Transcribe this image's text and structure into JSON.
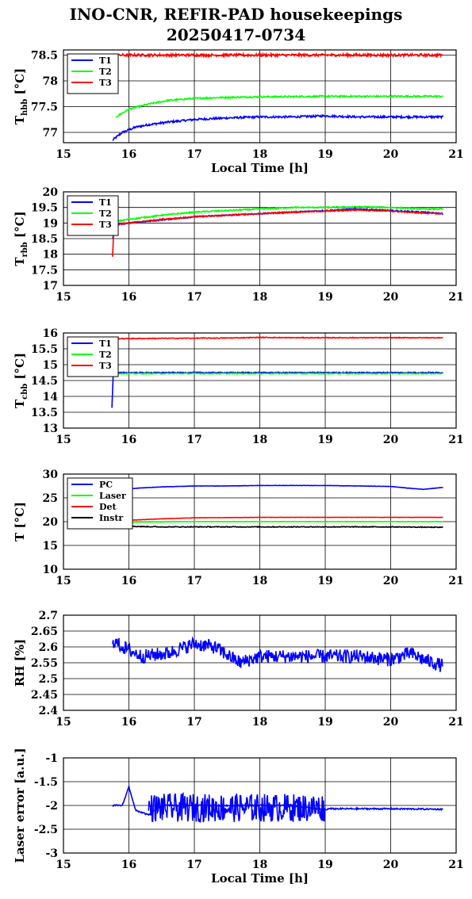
{
  "title_line1": "INO-CNR, REFIR-PAD housekeepings",
  "title_line2": "20250417-0734",
  "chart_data": [
    {
      "type": "line",
      "ylabel": "T_hbb [°C]",
      "ylabel_main": "T",
      "ylabel_sub": "hbb",
      "ylabel_tail": " [°C]",
      "xlabel": "Local Time [h]",
      "xlim": [
        15,
        21
      ],
      "ylim": [
        76.8,
        78.6
      ],
      "yticks": [
        77,
        77.5,
        78,
        78.5
      ],
      "ytick_labels": [
        "77",
        "77.5",
        "78",
        "78.5"
      ],
      "xticks": [
        15,
        16,
        17,
        18,
        19,
        20,
        21
      ],
      "xtick_labels": [
        "15",
        "16",
        "17",
        "18",
        "19",
        "20",
        "21"
      ],
      "legend": "top-left",
      "grid": true,
      "series": [
        {
          "name": "T1",
          "color": "#0000ff",
          "noise": 0.02,
          "x": [
            15.75,
            15.9,
            16.1,
            16.3,
            16.6,
            17.0,
            17.5,
            18.0,
            18.5,
            19.0,
            19.5,
            20.0,
            20.5,
            20.8
          ],
          "y": [
            76.85,
            77.0,
            77.1,
            77.15,
            77.2,
            77.25,
            77.28,
            77.3,
            77.3,
            77.32,
            77.3,
            77.3,
            77.3,
            77.3
          ]
        },
        {
          "name": "T2",
          "color": "#00ff00",
          "noise": 0.015,
          "x": [
            15.8,
            16.0,
            16.3,
            16.6,
            17.0,
            17.5,
            18.0,
            19.0,
            20.0,
            20.8
          ],
          "y": [
            77.3,
            77.45,
            77.55,
            77.62,
            77.66,
            77.68,
            77.69,
            77.7,
            77.7,
            77.7
          ]
        },
        {
          "name": "T3",
          "color": "#ff0000",
          "noise": 0.025,
          "x": [
            15.85,
            16.5,
            17.5,
            18.5,
            19.5,
            20.3,
            20.8
          ],
          "y": [
            78.5,
            78.5,
            78.5,
            78.5,
            78.5,
            78.5,
            78.5
          ]
        }
      ]
    },
    {
      "type": "line",
      "ylabel": "T_rbb [°C]",
      "ylabel_main": "T",
      "ylabel_sub": "rbb",
      "ylabel_tail": " [°C]",
      "xlabel": "",
      "xlim": [
        15,
        21
      ],
      "ylim": [
        17,
        20
      ],
      "yticks": [
        17,
        17.5,
        18,
        18.5,
        19,
        19.5,
        20
      ],
      "ytick_labels": [
        "17",
        "17.5",
        "18",
        "18.5",
        "19",
        "19.5",
        "20"
      ],
      "xticks": [
        15,
        16,
        17,
        18,
        19,
        20,
        21
      ],
      "xtick_labels": [
        "15",
        "16",
        "17",
        "18",
        "19",
        "20",
        "21"
      ],
      "legend": "top-left",
      "grid": true,
      "series": [
        {
          "name": "T1",
          "color": "#0000ff",
          "noise": 0.02,
          "x": [
            15.75,
            15.8,
            16.0,
            16.5,
            17.0,
            17.5,
            18.0,
            18.5,
            19.0,
            19.5,
            20.0,
            20.5,
            20.8
          ],
          "y": [
            18.5,
            18.95,
            19.0,
            19.1,
            19.2,
            19.25,
            19.3,
            19.35,
            19.4,
            19.45,
            19.4,
            19.35,
            19.3
          ]
        },
        {
          "name": "T2",
          "color": "#00ff00",
          "noise": 0.02,
          "x": [
            15.8,
            16.0,
            16.5,
            17.0,
            17.5,
            18.0,
            18.5,
            19.0,
            19.5,
            20.0,
            20.5,
            20.8
          ],
          "y": [
            19.05,
            19.12,
            19.25,
            19.35,
            19.4,
            19.45,
            19.5,
            19.5,
            19.52,
            19.5,
            19.45,
            19.45
          ]
        },
        {
          "name": "T3",
          "color": "#ff0000",
          "noise": 0.02,
          "x": [
            15.75,
            15.77,
            15.8,
            16.0,
            16.5,
            17.0,
            17.5,
            18.0,
            18.5,
            19.0,
            19.5,
            20.0,
            20.5,
            20.8
          ],
          "y": [
            17.9,
            18.85,
            18.95,
            19.0,
            19.12,
            19.2,
            19.25,
            19.3,
            19.35,
            19.38,
            19.42,
            19.38,
            19.32,
            19.3
          ]
        }
      ]
    },
    {
      "type": "line",
      "ylabel": "T_cbb [°C]",
      "ylabel_main": "T",
      "ylabel_sub": "cbb",
      "ylabel_tail": " [°C]",
      "xlabel": "",
      "xlim": [
        15,
        21
      ],
      "ylim": [
        13,
        16
      ],
      "yticks": [
        13,
        13.5,
        14,
        14.5,
        15,
        15.5,
        16
      ],
      "ytick_labels": [
        "13",
        "13.5",
        "14",
        "14.5",
        "15",
        "15.5",
        "16"
      ],
      "xticks": [
        15,
        16,
        17,
        18,
        19,
        20,
        21
      ],
      "xtick_labels": [
        "15",
        "16",
        "17",
        "18",
        "19",
        "20",
        "21"
      ],
      "legend": "top-left",
      "grid": true,
      "series": [
        {
          "name": "T1",
          "color": "#0000ff",
          "noise": 0.015,
          "x": [
            15.74,
            15.76,
            15.8,
            16.5,
            17.5,
            18.5,
            19.5,
            20.5,
            20.8
          ],
          "y": [
            13.65,
            14.7,
            14.75,
            14.75,
            14.75,
            14.75,
            14.75,
            14.75,
            14.75
          ]
        },
        {
          "name": "T2",
          "color": "#00ff00",
          "noise": 0.015,
          "x": [
            15.8,
            16.5,
            17.5,
            18.5,
            19.5,
            20.5,
            20.8
          ],
          "y": [
            14.72,
            14.72,
            14.72,
            14.72,
            14.72,
            14.72,
            14.72
          ]
        },
        {
          "name": "T3",
          "color": "#ff0000",
          "noise": 0.012,
          "x": [
            15.8,
            16.5,
            17.5,
            18.0,
            18.5,
            19.5,
            20.5,
            20.8
          ],
          "y": [
            15.82,
            15.83,
            15.84,
            15.86,
            15.85,
            15.85,
            15.85,
            15.85
          ]
        }
      ]
    },
    {
      "type": "line",
      "ylabel": "T [°C]",
      "ylabel_main": "T",
      "ylabel_sub": "",
      "ylabel_tail": " [°C]",
      "xlabel": "",
      "xlim": [
        15,
        21
      ],
      "ylim": [
        10,
        30
      ],
      "yticks": [
        10,
        15,
        20,
        25,
        30
      ],
      "ytick_labels": [
        "10",
        "15",
        "20",
        "25",
        "30"
      ],
      "xticks": [
        15,
        16,
        17,
        18,
        19,
        20,
        21
      ],
      "xtick_labels": [
        "15",
        "16",
        "17",
        "18",
        "19",
        "20",
        "21"
      ],
      "legend": "top-left",
      "grid": true,
      "series": [
        {
          "name": "PC",
          "color": "#0000ff",
          "noise": 0.03,
          "x": [
            15.9,
            16.2,
            16.5,
            17.0,
            17.5,
            18.0,
            18.5,
            19.0,
            19.5,
            20.0,
            20.3,
            20.5,
            20.8
          ],
          "y": [
            26.8,
            27.1,
            27.3,
            27.5,
            27.5,
            27.6,
            27.6,
            27.6,
            27.5,
            27.4,
            27.0,
            26.8,
            27.2
          ]
        },
        {
          "name": "Laser",
          "color": "#00ff00",
          "noise": 0.03,
          "x": [
            16.0,
            16.5,
            17.0,
            18.0,
            19.0,
            20.0,
            20.8
          ],
          "y": [
            19.9,
            19.95,
            20.0,
            20.0,
            20.0,
            20.0,
            20.0
          ]
        },
        {
          "name": "Det",
          "color": "#ff0000",
          "noise": 0.02,
          "x": [
            16.0,
            16.5,
            17.0,
            18.0,
            19.0,
            20.0,
            20.8
          ],
          "y": [
            20.3,
            20.6,
            20.8,
            20.9,
            20.9,
            20.9,
            20.9
          ]
        },
        {
          "name": "Instr",
          "color": "#000000",
          "noise": 0.08,
          "x": [
            16.0,
            16.5,
            17.0,
            18.0,
            19.0,
            20.0,
            20.8
          ],
          "y": [
            19.0,
            18.9,
            18.9,
            18.9,
            18.9,
            18.9,
            18.8
          ]
        }
      ]
    },
    {
      "type": "line",
      "ylabel": "RH [%]",
      "ylabel_main": "RH [%]",
      "ylabel_sub": "",
      "ylabel_tail": "",
      "xlabel": "",
      "xlim": [
        15,
        21
      ],
      "ylim": [
        2.4,
        2.7
      ],
      "yticks": [
        2.4,
        2.45,
        2.5,
        2.55,
        2.6,
        2.65,
        2.7
      ],
      "ytick_labels": [
        "2.4",
        "2.45",
        "2.5",
        "2.55",
        "2.6",
        "2.65",
        "2.7"
      ],
      "xticks": [
        15,
        16,
        17,
        18,
        19,
        20,
        21
      ],
      "xtick_labels": [
        "15",
        "16",
        "17",
        "18",
        "19",
        "20",
        "21"
      ],
      "legend": "none",
      "grid": true,
      "series": [
        {
          "name": "",
          "color": "#0000ff",
          "noise": 0.022,
          "x": [
            15.75,
            15.9,
            16.2,
            16.6,
            17.0,
            17.3,
            17.7,
            18.0,
            18.5,
            19.0,
            19.5,
            20.0,
            20.3,
            20.5,
            20.8
          ],
          "y": [
            2.62,
            2.6,
            2.57,
            2.58,
            2.61,
            2.6,
            2.55,
            2.57,
            2.57,
            2.57,
            2.57,
            2.56,
            2.58,
            2.56,
            2.54
          ]
        }
      ]
    },
    {
      "type": "line",
      "ylabel": "Laser error [a.u.]",
      "ylabel_main": "Laser error [a.u.]",
      "ylabel_sub": "",
      "ylabel_tail": "",
      "xlabel": "Local Time [h]",
      "xlim": [
        15,
        21
      ],
      "ylim": [
        -3,
        -1
      ],
      "yticks": [
        -3,
        -2.5,
        -2,
        -1.5,
        -1
      ],
      "ytick_labels": [
        "-3",
        "-2.5",
        "-2",
        "-1.5",
        "-1"
      ],
      "xticks": [
        15,
        16,
        17,
        18,
        19,
        20,
        21
      ],
      "xtick_labels": [
        "15",
        "16",
        "17",
        "18",
        "19",
        "20",
        "21"
      ],
      "legend": "none",
      "grid": true,
      "series": [
        {
          "name": "",
          "color": "#0000ff",
          "noise": 0.015,
          "x": [
            15.75,
            15.9,
            16.0,
            16.1,
            16.3,
            16.5,
            17.0,
            17.5,
            18.0,
            18.5,
            19.0,
            19.05,
            19.5,
            20.0,
            20.8
          ],
          "y": [
            -2.0,
            -2.0,
            -1.6,
            -2.1,
            -2.2,
            -2.0,
            -2.0,
            -2.0,
            -2.0,
            -2.0,
            -2.1,
            -2.07,
            -2.07,
            -2.07,
            -2.08
          ]
        },
        {
          "name": "",
          "color": "#0000ff",
          "noise": 0.3,
          "x": [
            16.3,
            17.0,
            18.0,
            19.0
          ],
          "y": [
            -2.05,
            -2.05,
            -2.05,
            -2.05
          ]
        }
      ]
    }
  ]
}
